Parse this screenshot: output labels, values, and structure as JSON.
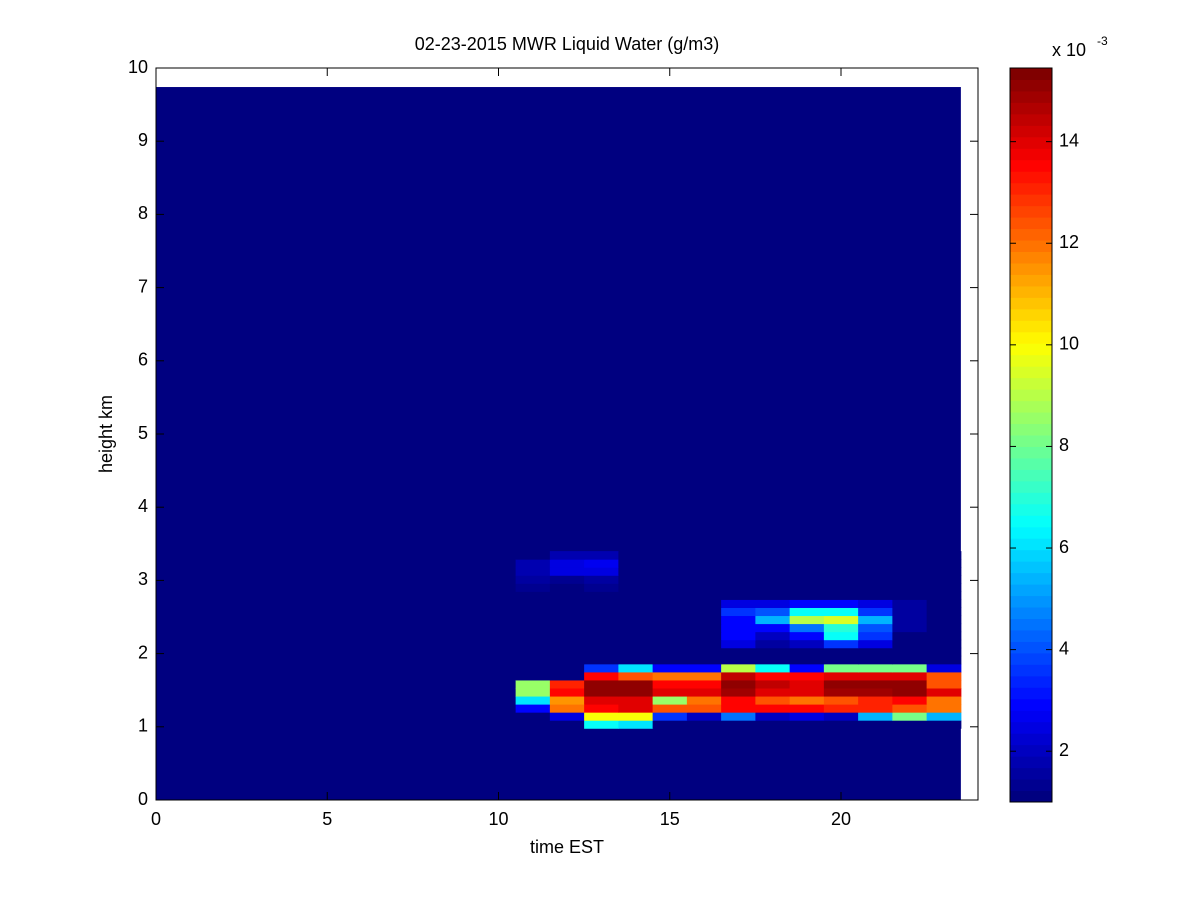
{
  "chart_data": {
    "type": "heatmap",
    "title": "02-23-2015 MWR Liquid Water (g/m3)",
    "x_label": "time EST",
    "y_label": "height km",
    "xlim": [
      0,
      24
    ],
    "xticks": [
      0,
      5,
      10,
      15,
      20
    ],
    "ylim": [
      0,
      10
    ],
    "yticks": [
      0,
      1,
      2,
      3,
      4,
      5,
      6,
      7,
      8,
      9,
      10
    ],
    "colormap": "jet",
    "clim": [
      1.0,
      15.45
    ],
    "cticks": [
      2,
      4,
      6,
      8,
      10,
      12,
      14
    ],
    "colorbar_multiplier": {
      "base": "x 10",
      "exponent": "-3"
    },
    "field_x": [
      0,
      23.5
    ],
    "field_y": [
      0,
      9.74
    ],
    "field_value": 1.0,
    "x_edges": [
      10.5,
      11.5,
      12.5,
      13.5,
      14.5,
      15.5,
      16.5,
      17.5,
      18.5,
      19.5,
      20.5,
      21.5,
      22.5,
      23.5
    ],
    "y_edges": [
      0.98,
      1.09,
      1.2,
      1.31,
      1.42,
      1.53,
      1.64,
      1.75,
      1.86,
      1.97,
      2.08,
      2.19,
      2.3,
      2.41,
      2.52,
      2.63,
      2.74,
      2.85,
      2.96,
      3.07,
      3.18,
      3.29,
      3.4
    ],
    "z": [
      [
        1,
        1,
        6.5,
        6,
        1,
        1,
        1,
        1,
        1,
        1,
        1,
        1,
        1
      ],
      [
        1,
        2.5,
        10,
        10,
        3.5,
        2,
        4.5,
        2,
        2.5,
        2,
        5.5,
        8,
        5.5
      ],
      [
        3,
        12,
        13.5,
        14,
        12.5,
        12.5,
        13.5,
        13.5,
        13.5,
        13,
        13,
        12.5,
        12
      ],
      [
        6,
        11.5,
        14,
        14,
        8.5,
        12,
        13.5,
        12.5,
        12,
        12.5,
        13,
        13.5,
        12
      ],
      [
        8.5,
        13.5,
        15.2,
        15.2,
        14,
        14,
        14.8,
        14,
        14,
        14.8,
        14.8,
        15,
        14
      ],
      [
        8.5,
        13,
        15,
        15,
        13.5,
        13.5,
        15,
        14.5,
        14,
        15,
        15,
        15,
        12.5
      ],
      [
        1,
        1,
        13.5,
        12.5,
        12,
        12,
        14.5,
        13.5,
        13.5,
        14,
        14,
        14,
        12.5
      ],
      [
        1,
        1,
        3.5,
        6,
        3,
        3,
        9,
        6.5,
        3,
        8,
        8,
        8,
        2.5
      ],
      [
        1,
        1,
        1,
        1,
        1,
        1,
        1,
        1,
        1,
        1,
        1,
        1,
        1
      ],
      [
        1,
        1,
        1,
        1,
        1,
        1,
        1,
        1,
        1,
        1,
        1,
        1,
        1
      ],
      [
        1,
        1,
        1,
        1,
        1,
        1,
        2.5,
        1.5,
        2,
        3.5,
        2.5,
        1,
        1
      ],
      [
        1,
        1,
        1,
        1,
        1,
        1,
        3,
        2,
        3,
        6.5,
        3.5,
        1.2,
        1
      ],
      [
        1,
        1,
        1,
        1,
        1,
        1,
        3,
        3,
        4.5,
        7,
        4,
        1.5,
        1
      ],
      [
        1,
        1,
        1,
        1,
        1,
        1,
        3,
        5.5,
        9,
        9.5,
        5.5,
        1.5,
        1
      ],
      [
        1,
        1,
        1,
        1,
        1,
        1,
        3.5,
        4,
        6.5,
        6.5,
        3.5,
        1.5,
        1
      ],
      [
        1,
        1,
        1,
        1,
        1,
        1,
        2.5,
        2.5,
        3,
        3,
        2.5,
        1.5,
        1
      ],
      [
        1,
        1,
        1,
        1,
        1,
        1,
        1,
        1,
        1,
        1,
        1,
        1,
        1
      ],
      [
        1.3,
        1,
        1.3,
        1,
        1,
        1,
        1,
        1,
        1,
        1,
        1,
        1,
        1
      ],
      [
        1.5,
        1.3,
        1.5,
        1,
        1,
        1,
        1,
        1,
        1,
        1,
        1,
        1,
        1
      ],
      [
        1.8,
        2.5,
        2.5,
        1,
        1,
        1,
        1,
        1,
        1,
        1,
        1,
        1,
        1
      ],
      [
        1.8,
        2.5,
        2.8,
        1,
        1,
        1,
        1,
        1,
        1,
        1,
        1,
        1,
        1
      ],
      [
        1,
        1.8,
        1.8,
        1,
        1,
        1,
        1,
        1,
        1,
        1,
        1,
        1,
        1
      ]
    ]
  }
}
